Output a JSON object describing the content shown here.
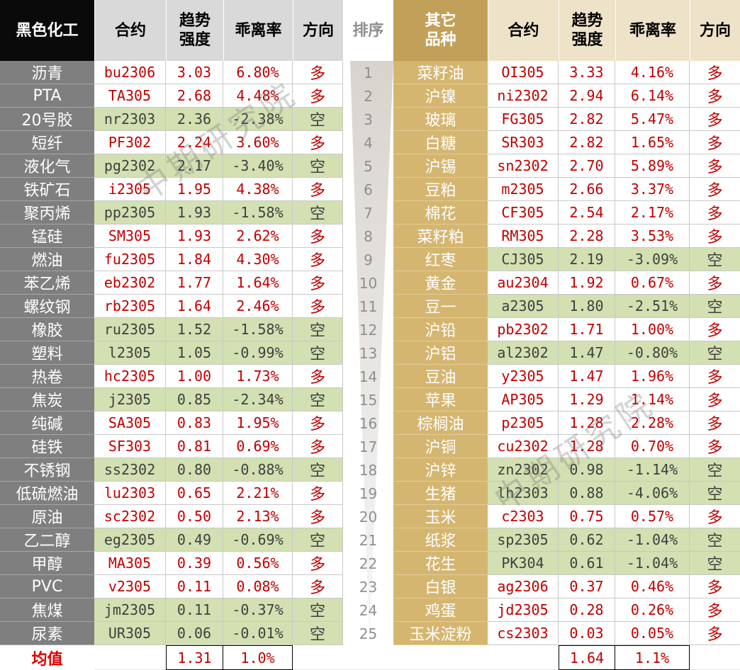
{
  "colors": {
    "long_text": "#c00000",
    "short_text": "#404040",
    "short_bg": "#d3e0b2",
    "left_header_bg": "#0a0a0a",
    "left_subheader_bg": "#d9d9d9",
    "left_category_bg": "#7f7f7f",
    "right_header_bg": "#c3a05a",
    "right_subheader_bg": "#eee3c9",
    "right_category_bg": "#d5b670",
    "rank_text": "#8f8f8f",
    "average_label": "#e00000"
  },
  "watermark": "中期研究院",
  "chart_data": {
    "type": "table",
    "header": {
      "left": {
        "category": "黑色化工",
        "contract": "合约",
        "strength": [
          "趋势",
          "强度"
        ],
        "deviation": "乖离率",
        "direction": "方向"
      },
      "rank": "排序",
      "right": {
        "category": [
          "其它",
          "品种"
        ],
        "contract": "合约",
        "strength": [
          "趋势",
          "强度"
        ],
        "deviation": "乖离率",
        "direction": "方向"
      }
    },
    "ranks": [
      "1",
      "2",
      "3",
      "4",
      "5",
      "6",
      "7",
      "8",
      "9",
      "10",
      "11",
      "12",
      "13",
      "14",
      "15",
      "16",
      "17",
      "18",
      "19",
      "20",
      "21",
      "22",
      "23",
      "24",
      "25"
    ],
    "left_rows": [
      {
        "name": "沥青",
        "contract": "bu2306",
        "strength": "3.03",
        "deviation": "6.80%",
        "direction": "多"
      },
      {
        "name": "PTA",
        "contract": "TA305",
        "strength": "2.68",
        "deviation": "4.48%",
        "direction": "多"
      },
      {
        "name": "20号胶",
        "contract": "nr2303",
        "strength": "2.36",
        "deviation": "-2.38%",
        "direction": "空"
      },
      {
        "name": "短纤",
        "contract": "PF302",
        "strength": "2.24",
        "deviation": "3.60%",
        "direction": "多"
      },
      {
        "name": "液化气",
        "contract": "pg2302",
        "strength": "2.17",
        "deviation": "-3.40%",
        "direction": "空"
      },
      {
        "name": "铁矿石",
        "contract": "i2305",
        "strength": "1.95",
        "deviation": "4.38%",
        "direction": "多"
      },
      {
        "name": "聚丙烯",
        "contract": "pp2305",
        "strength": "1.93",
        "deviation": "-1.58%",
        "direction": "空"
      },
      {
        "name": "锰硅",
        "contract": "SM305",
        "strength": "1.93",
        "deviation": "2.62%",
        "direction": "多"
      },
      {
        "name": "燃油",
        "contract": "fu2305",
        "strength": "1.84",
        "deviation": "4.30%",
        "direction": "多"
      },
      {
        "name": "苯乙烯",
        "contract": "eb2302",
        "strength": "1.77",
        "deviation": "1.64%",
        "direction": "多"
      },
      {
        "name": "螺纹钢",
        "contract": "rb2305",
        "strength": "1.64",
        "deviation": "2.46%",
        "direction": "多"
      },
      {
        "name": "橡胶",
        "contract": "ru2305",
        "strength": "1.52",
        "deviation": "-1.58%",
        "direction": "空"
      },
      {
        "name": "塑料",
        "contract": "l2305",
        "strength": "1.05",
        "deviation": "-0.99%",
        "direction": "空"
      },
      {
        "name": "热卷",
        "contract": "hc2305",
        "strength": "1.00",
        "deviation": "1.73%",
        "direction": "多"
      },
      {
        "name": "焦炭",
        "contract": "j2305",
        "strength": "0.85",
        "deviation": "-2.34%",
        "direction": "空"
      },
      {
        "name": "纯碱",
        "contract": "SA305",
        "strength": "0.83",
        "deviation": "1.95%",
        "direction": "多"
      },
      {
        "name": "硅铁",
        "contract": "SF303",
        "strength": "0.81",
        "deviation": "0.69%",
        "direction": "多"
      },
      {
        "name": "不锈钢",
        "contract": "ss2302",
        "strength": "0.80",
        "deviation": "-0.88%",
        "direction": "空"
      },
      {
        "name": "低硫燃油",
        "contract": "lu2303",
        "strength": "0.65",
        "deviation": "2.21%",
        "direction": "多"
      },
      {
        "name": "原油",
        "contract": "sc2302",
        "strength": "0.50",
        "deviation": "2.13%",
        "direction": "多"
      },
      {
        "name": "乙二醇",
        "contract": "eg2305",
        "strength": "0.49",
        "deviation": "-0.69%",
        "direction": "空"
      },
      {
        "name": "甲醇",
        "contract": "MA305",
        "strength": "0.39",
        "deviation": "0.56%",
        "direction": "多"
      },
      {
        "name": "PVC",
        "contract": "v2305",
        "strength": "0.11",
        "deviation": "0.08%",
        "direction": "多"
      },
      {
        "name": "焦煤",
        "contract": "jm2305",
        "strength": "0.11",
        "deviation": "-0.37%",
        "direction": "空"
      },
      {
        "name": "尿素",
        "contract": "UR305",
        "strength": "0.06",
        "deviation": "-0.01%",
        "direction": "空"
      }
    ],
    "right_rows": [
      {
        "name": "菜籽油",
        "contract": "OI305",
        "strength": "3.33",
        "deviation": "4.16%",
        "direction": "多"
      },
      {
        "name": "沪镍",
        "contract": "ni2302",
        "strength": "2.94",
        "deviation": "6.14%",
        "direction": "多"
      },
      {
        "name": "玻璃",
        "contract": "FG305",
        "strength": "2.82",
        "deviation": "5.47%",
        "direction": "多"
      },
      {
        "name": "白糖",
        "contract": "SR303",
        "strength": "2.82",
        "deviation": "1.65%",
        "direction": "多"
      },
      {
        "name": "沪锡",
        "contract": "sn2302",
        "strength": "2.70",
        "deviation": "5.89%",
        "direction": "多"
      },
      {
        "name": "豆粕",
        "contract": "m2305",
        "strength": "2.66",
        "deviation": "3.37%",
        "direction": "多"
      },
      {
        "name": "棉花",
        "contract": "CF305",
        "strength": "2.54",
        "deviation": "2.17%",
        "direction": "多"
      },
      {
        "name": "菜籽粕",
        "contract": "RM305",
        "strength": "2.28",
        "deviation": "3.53%",
        "direction": "多"
      },
      {
        "name": "红枣",
        "contract": "CJ305",
        "strength": "2.19",
        "deviation": "-3.09%",
        "direction": "空"
      },
      {
        "name": "黄金",
        "contract": "au2304",
        "strength": "1.92",
        "deviation": "0.67%",
        "direction": "多"
      },
      {
        "name": "豆一",
        "contract": "a2305",
        "strength": "1.80",
        "deviation": "-2.51%",
        "direction": "空"
      },
      {
        "name": "沪铅",
        "contract": "pb2302",
        "strength": "1.71",
        "deviation": "1.00%",
        "direction": "多"
      },
      {
        "name": "沪铝",
        "contract": "al2302",
        "strength": "1.47",
        "deviation": "-0.80%",
        "direction": "空"
      },
      {
        "name": "豆油",
        "contract": "y2305",
        "strength": "1.47",
        "deviation": "1.96%",
        "direction": "多"
      },
      {
        "name": "苹果",
        "contract": "AP305",
        "strength": "1.29",
        "deviation": "1.14%",
        "direction": "多"
      },
      {
        "name": "棕榈油",
        "contract": "p2305",
        "strength": "1.28",
        "deviation": "2.28%",
        "direction": "多"
      },
      {
        "name": "沪铜",
        "contract": "cu2302",
        "strength": "1.28",
        "deviation": "0.70%",
        "direction": "多"
      },
      {
        "name": "沪锌",
        "contract": "zn2302",
        "strength": "0.98",
        "deviation": "-1.14%",
        "direction": "空"
      },
      {
        "name": "生猪",
        "contract": "lh2303",
        "strength": "0.88",
        "deviation": "-4.06%",
        "direction": "空"
      },
      {
        "name": "玉米",
        "contract": "c2303",
        "strength": "0.75",
        "deviation": "0.57%",
        "direction": "多"
      },
      {
        "name": "纸浆",
        "contract": "sp2305",
        "strength": "0.62",
        "deviation": "-1.04%",
        "direction": "空"
      },
      {
        "name": "花生",
        "contract": "PK304",
        "strength": "0.61",
        "deviation": "-1.04%",
        "direction": "空"
      },
      {
        "name": "白银",
        "contract": "ag2306",
        "strength": "0.37",
        "deviation": "0.46%",
        "direction": "多"
      },
      {
        "name": "鸡蛋",
        "contract": "jd2305",
        "strength": "0.28",
        "deviation": "0.26%",
        "direction": "多"
      },
      {
        "name": "玉米淀粉",
        "contract": "cs2303",
        "strength": "0.03",
        "deviation": "0.05%",
        "direction": "多"
      }
    ],
    "footer": {
      "label": "均值",
      "left": {
        "strength": "1.31",
        "deviation": "1.0%"
      },
      "right": {
        "strength": "1.64",
        "deviation": "1.1%"
      }
    }
  }
}
